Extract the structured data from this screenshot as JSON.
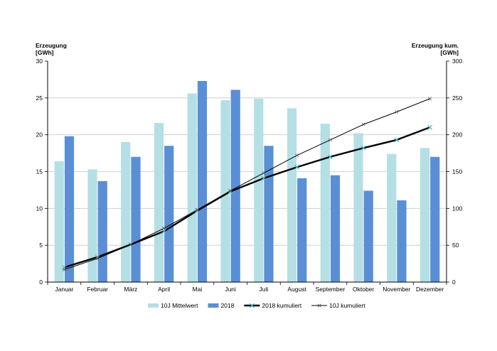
{
  "chart_data": {
    "type": "bar",
    "categories": [
      "Januar",
      "Februar",
      "März",
      "April",
      "Mai",
      "Juni",
      "Juli",
      "August",
      "September",
      "Oktober",
      "November",
      "Dezember"
    ],
    "series": [
      {
        "name": "10J  Mittelwert",
        "type": "bar",
        "axis": "left",
        "color": "#b4dfe5",
        "values": [
          16.4,
          15.3,
          19.0,
          21.6,
          25.6,
          24.7,
          24.9,
          23.6,
          21.5,
          20.2,
          17.4,
          18.2
        ]
      },
      {
        "name": "2018",
        "type": "bar",
        "axis": "left",
        "color": "#5a8fd6",
        "values": [
          19.8,
          13.7,
          17.0,
          18.5,
          27.3,
          26.1,
          18.5,
          14.1,
          14.5,
          12.4,
          11.1,
          17.0
        ]
      },
      {
        "name": "2018 kumuliert",
        "type": "line",
        "axis": "right",
        "color": "#000000",
        "marker_color": "#4fb8cc",
        "values": [
          20,
          34,
          51,
          69,
          97,
          123,
          141,
          156,
          170,
          182,
          193,
          210
        ]
      },
      {
        "name": "10J kumuliert",
        "type": "line",
        "axis": "right",
        "color": "#000000",
        "marker_color": "#555555",
        "values": [
          17,
          32,
          51,
          73,
          98,
          124,
          148,
          172,
          193,
          214,
          231,
          249
        ]
      }
    ],
    "ylabel_left": [
      "Erzeugung",
      "[GWh]"
    ],
    "ylabel_right": [
      "Erzeugung kum.",
      "[GWh]"
    ],
    "ylim_left": [
      0,
      30
    ],
    "ylim_right": [
      0,
      300
    ],
    "yticks_left": [
      "0",
      "5",
      "10",
      "15",
      "20",
      "25",
      "30"
    ],
    "yticks_right": [
      "0",
      "50",
      "100",
      "150",
      "200",
      "250",
      "300"
    ],
    "grid": true,
    "legend_position": "bottom"
  }
}
